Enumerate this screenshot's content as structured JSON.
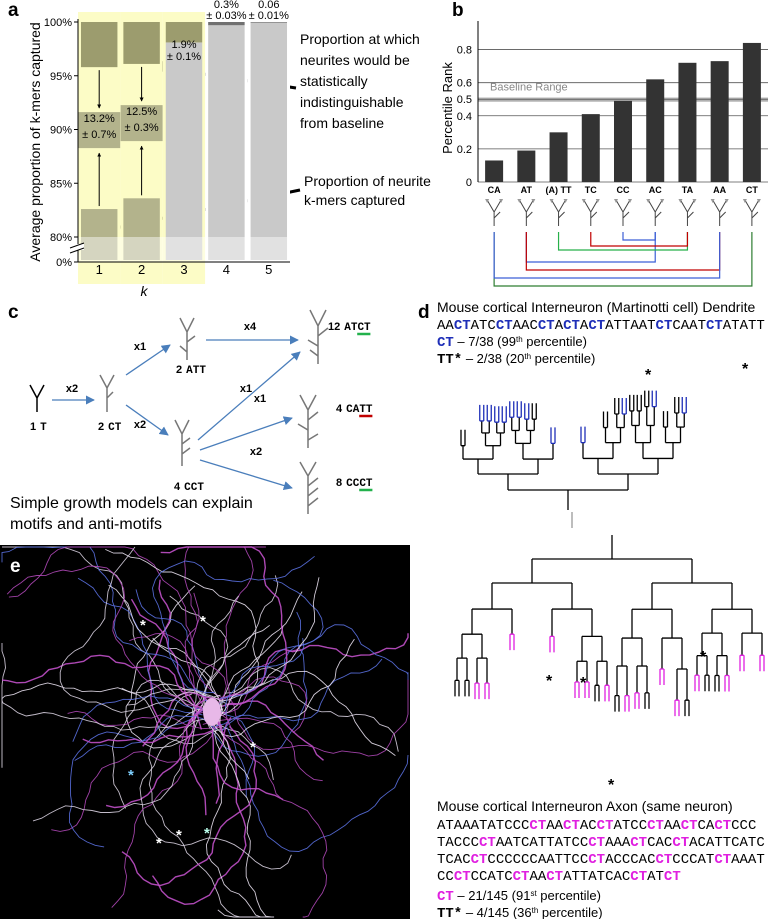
{
  "chart_data": [
    {
      "type": "bar",
      "panel": "a",
      "y_label": "Average proportion of k-mers captured",
      "x_label": "k",
      "categories": [
        "1",
        "2",
        "3",
        "4",
        "5"
      ],
      "values": [
        82.6,
        83.6,
        98.1,
        99.7,
        99.94
      ],
      "baseline": [
        95.8,
        96.1,
        98.1,
        99.7,
        99.94
      ],
      "lower_colors": [
        "#b3b38c",
        "#b3b38c",
        "#c9c9c9",
        "#c9c9c9",
        "#c9c9c9"
      ],
      "upper_colors": [
        "#9c9c6e",
        "#9c9c6e",
        "#9c9c6e",
        "#707070",
        "#707070"
      ],
      "background_colors": [
        "#fcfcc6",
        "#fcfcc6",
        "#fcfcc6",
        "#ffffff",
        "#ffffff"
      ],
      "difference_labels": [
        [
          "13.2%",
          "± 0.7%"
        ],
        [
          "12.5%",
          "± 0.3%"
        ],
        [
          "1.9%",
          "± 0.1%"
        ],
        [
          "0.3%",
          "± 0.03%"
        ],
        [
          "0.06",
          "± 0.01%"
        ]
      ],
      "annotations": [
        [
          "Proportion at which",
          "neurites would be",
          "statistically",
          "indistinguishable",
          "from baseline"
        ],
        [
          "Proportion of neurite",
          "k-mers captured"
        ]
      ],
      "ylim": [
        80,
        100
      ],
      "yticks": [
        {
          "value": 0,
          "label": "0%"
        },
        {
          "value": 80,
          "label": "80%"
        },
        {
          "value": 85,
          "label": "85%"
        },
        {
          "value": 90,
          "label": "90%"
        },
        {
          "value": 95,
          "label": "95%"
        },
        {
          "value": 100,
          "label": "100%"
        }
      ],
      "axis_break": true
    },
    {
      "type": "bar",
      "panel": "b",
      "y_label": "Percentile Rank",
      "categories": [
        "CA",
        "AT",
        "(A) TT",
        "TC",
        "CC",
        "AC",
        "TA",
        "AA",
        "CT"
      ],
      "values": [
        0.13,
        0.19,
        0.3,
        0.41,
        0.49,
        0.62,
        0.72,
        0.73,
        0.84
      ],
      "color": "#333333",
      "ylim": [
        0,
        0.9
      ],
      "yticks": [
        0,
        0.2,
        0.4,
        0.5,
        0.6,
        0.8
      ],
      "grid": true,
      "baseline_band": [
        0.485,
        0.51
      ],
      "baseline_label": "Baseline Range"
    }
  ],
  "panel_c": {
    "label": "c",
    "multipliers": [
      "x2",
      "x1",
      "x2",
      "x4",
      "x1",
      "x1",
      "x2"
    ],
    "nodes": [
      {
        "count": 1,
        "sequence": "T"
      },
      {
        "count": 2,
        "sequence": "CT"
      },
      {
        "count": 2,
        "sequence": "ATT"
      },
      {
        "count": 4,
        "sequence": "CCT"
      },
      {
        "count": 12,
        "sequence": "ATCT",
        "underline": "#22b14c"
      },
      {
        "count": 4,
        "sequence": "CATT",
        "underline": "#c00000"
      },
      {
        "count": 8,
        "sequence": "CCCT",
        "underline": "#22b14c"
      }
    ],
    "caption": [
      "Simple growth models can explain",
      "motifs and anti-motifs"
    ]
  },
  "panel_d": {
    "label": "d",
    "dendrite": {
      "title": "Mouse cortical Interneuron (Martinotti cell) Dendrite",
      "sequence": "AACTATCCTAACCTACTACTATTAATCTCAATCTATATT",
      "highlight": "CT",
      "color": "#1f2fb8",
      "stats": [
        {
          "motif": "CT",
          "text": " – 7/38 (99",
          "sup": "th",
          "tail": " percentile)"
        },
        {
          "motif": "TT*",
          "text": " – 2/38 (20",
          "sup": "th",
          "tail": " percentile)"
        }
      ]
    },
    "axon": {
      "title": "Mouse cortical Interneuron Axon (same neuron)",
      "sequence_lines": [
        "ATAAATATCCCCTAACTACCTATCCCTAACTCACTCCC",
        "TACCCCTAATCATTATCCCTAAACTCACCTACATTCATC",
        "TCACCTCCCCCCAATTCCCTACCCACCTCCCATCTAAAT",
        "CCCTCCATCCTAACTATTATCACCTATCT"
      ],
      "highlight": "CT",
      "color": "#e020e0",
      "stats": [
        {
          "motif": "CT",
          "text": " – 21/145 (91",
          "sup": "st",
          "tail": " percentile)"
        },
        {
          "motif": "TT*",
          "text": " – 4/145 (36",
          "sup": "th",
          "tail": " percentile)"
        }
      ]
    },
    "asterisks": [
      "*",
      "*",
      "*",
      "*",
      "*",
      "*"
    ]
  },
  "panel_e": {
    "label": "e",
    "asterisks": [
      "*",
      "*",
      "*",
      "*",
      "*",
      "*",
      "*"
    ]
  }
}
